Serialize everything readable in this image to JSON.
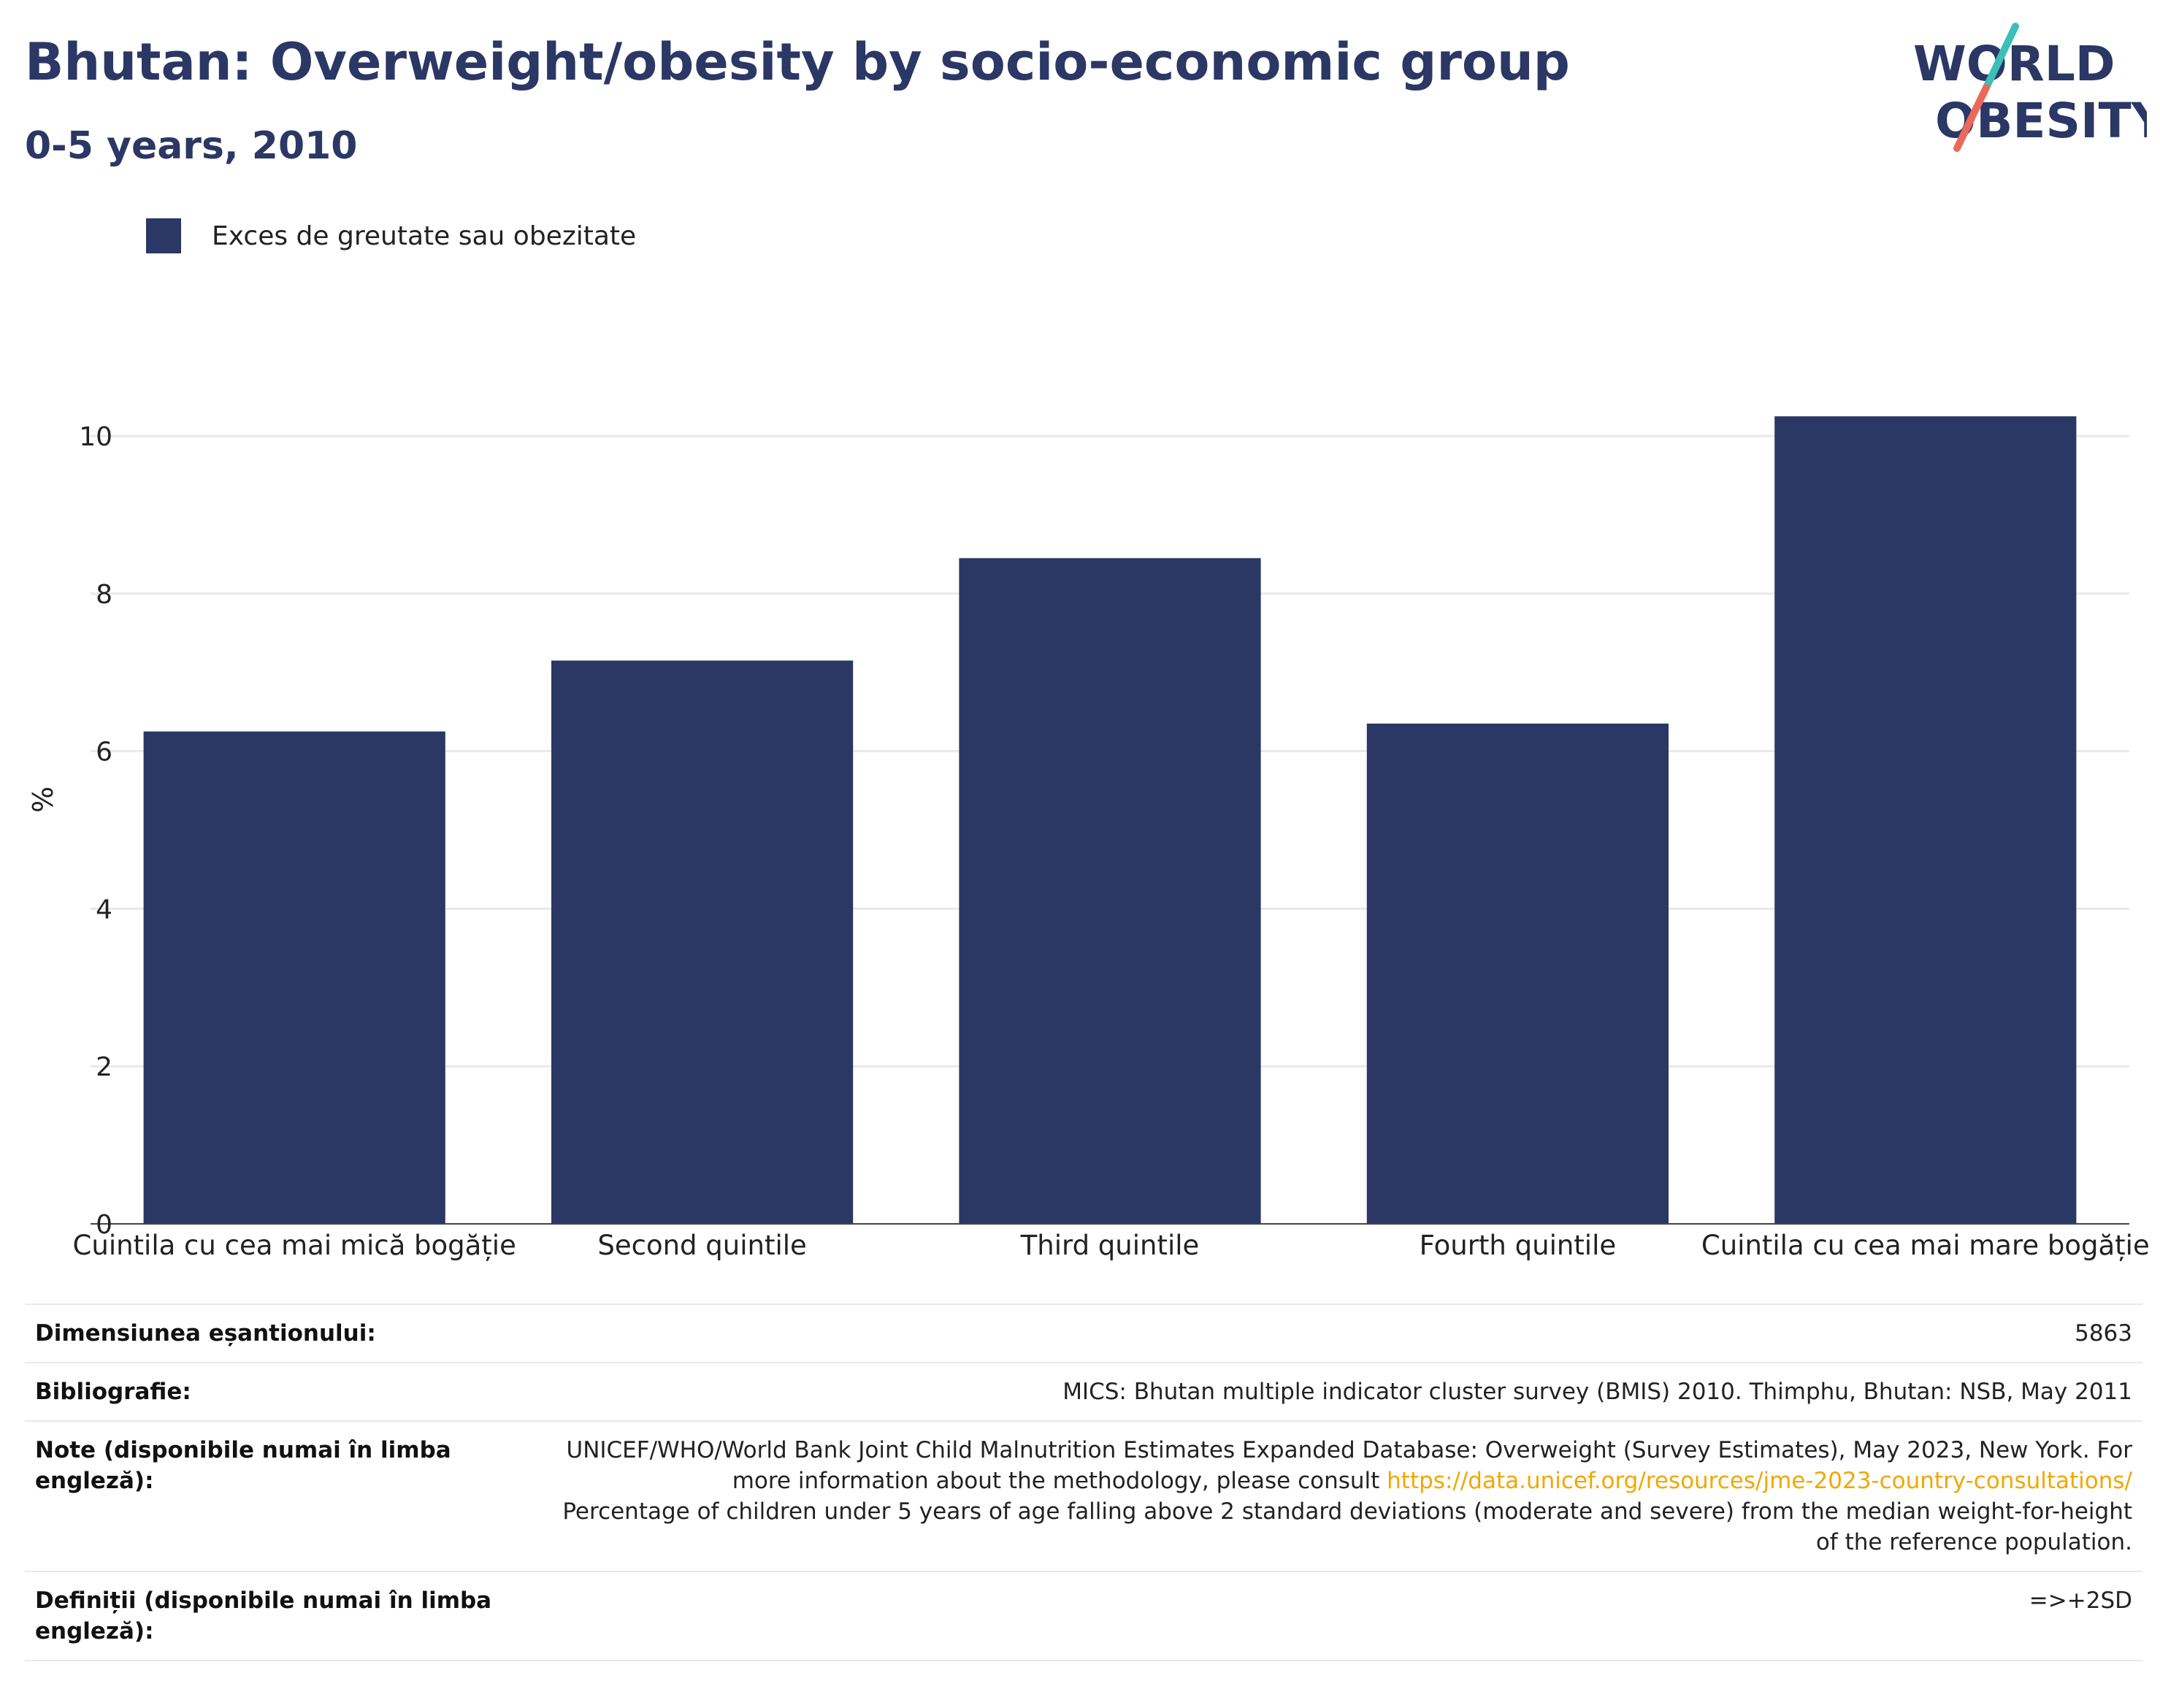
{
  "header": {
    "title": "Bhutan: Overweight/obesity by socio-economic group",
    "subtitle": "0-5 years, 2010"
  },
  "logo": {
    "line1": "WORLD",
    "line2": "OBESITY",
    "colors": {
      "text": "#2b3764",
      "slash_top": "#3bbfb8",
      "slash_bottom": "#ea6a5a"
    }
  },
  "legend": {
    "label": "Exces de greutate sau obezitate",
    "color": "#2b3764"
  },
  "chart_data": {
    "type": "bar",
    "categories": [
      "Cuintila cu cea mai mică bogăție",
      "Second quintile",
      "Third quintile",
      "Fourth quintile",
      "Cuintila cu cea mai mare bogăție"
    ],
    "series": [
      {
        "name": "Exces de greutate sau obezitate",
        "values": [
          6.25,
          7.15,
          8.45,
          6.35,
          10.25
        ],
        "color": "#2b3764"
      }
    ],
    "ylabel": "%",
    "ylim": [
      0,
      10.9
    ],
    "yticks": [
      0,
      2,
      4,
      6,
      8,
      10
    ],
    "grid": true,
    "legend_position": "top-left"
  },
  "info": {
    "sample_label": "Dimensiunea eșantionului:",
    "sample_value": "5863",
    "biblio_label": "Bibliografie:",
    "biblio_value": "MICS: Bhutan multiple indicator cluster survey (BMIS) 2010. Thimphu, Bhutan: NSB, May 2011",
    "notes_label": "Note (disponibile numai în limba engleză):",
    "notes_text1": "UNICEF/WHO/World Bank Joint Child Malnutrition Estimates Expanded Database: Overweight (Survey Estimates), May 2023, New York. For more information about the methodology, please consult ",
    "notes_link": "https://data.unicef.org/resources/jme-2023-country-consultations/",
    "notes_text2": "Percentage of children under 5 years of age falling above 2 standard deviations (moderate and severe) from the median weight-for-height of the reference population.",
    "defs_label": "Definiții (disponibile numai în limba engleză):",
    "defs_value": "=>+2SD"
  }
}
